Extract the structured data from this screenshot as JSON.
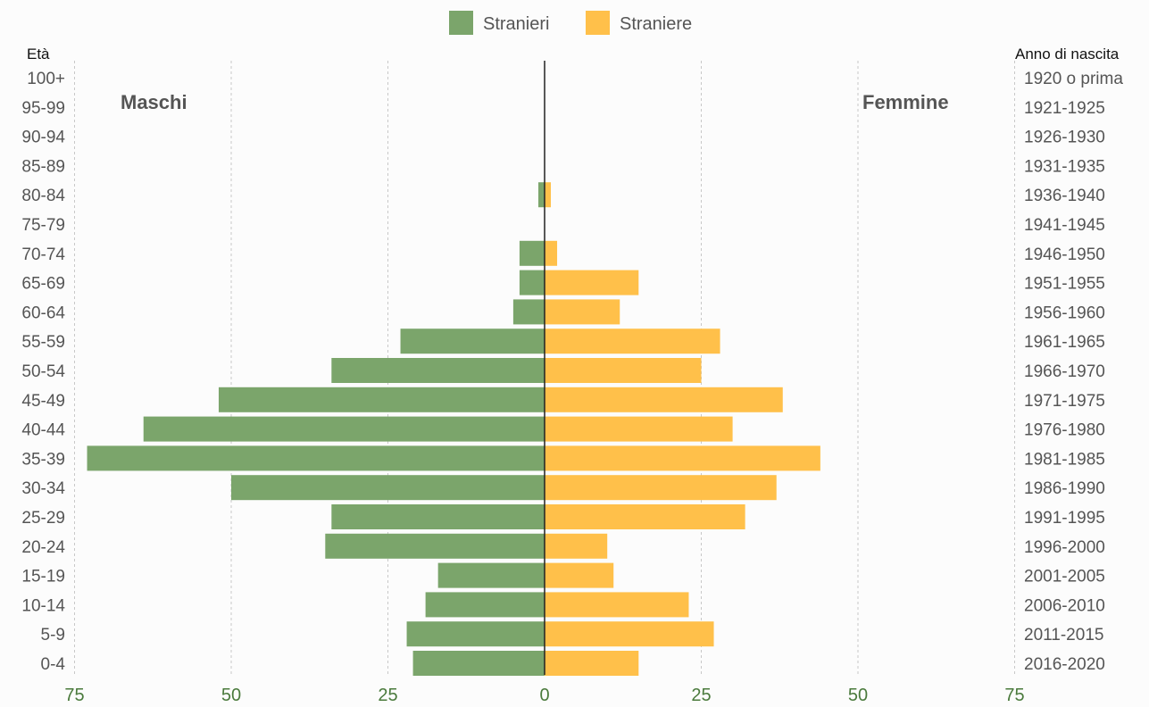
{
  "chart_data": {
    "type": "bar",
    "age_groups": [
      "0-4",
      "5-9",
      "10-14",
      "15-19",
      "20-24",
      "25-29",
      "30-34",
      "35-39",
      "40-44",
      "45-49",
      "50-54",
      "55-59",
      "60-64",
      "65-69",
      "70-74",
      "75-79",
      "80-84",
      "85-89",
      "90-94",
      "95-99",
      "100+"
    ],
    "birth_years": [
      "2016-2020",
      "2011-2015",
      "2006-2010",
      "2001-2005",
      "1996-2000",
      "1991-1995",
      "1986-1990",
      "1981-1985",
      "1976-1980",
      "1971-1975",
      "1966-1970",
      "1961-1965",
      "1956-1960",
      "1951-1955",
      "1946-1950",
      "1941-1945",
      "1936-1940",
      "1931-1935",
      "1926-1930",
      "1921-1925",
      "1920 o prima"
    ],
    "series": [
      {
        "name": "Stranieri",
        "color": "#7ba56b",
        "side": "left",
        "values": [
          21,
          22,
          19,
          17,
          35,
          34,
          50,
          73,
          64,
          52,
          34,
          23,
          5,
          4,
          4,
          0,
          1,
          0,
          0,
          0,
          0
        ]
      },
      {
        "name": "Straniere",
        "color": "#ffc04a",
        "side": "right",
        "values": [
          15,
          27,
          23,
          11,
          10,
          32,
          37,
          44,
          30,
          38,
          25,
          28,
          12,
          15,
          2,
          0,
          1,
          0,
          0,
          0,
          0
        ]
      }
    ],
    "x_ticks": [
      "75",
      "50",
      "25",
      "0",
      "25",
      "50",
      "75"
    ],
    "xlim": [
      -75,
      75
    ],
    "left_axis_title": "Età",
    "right_axis_title": "Anno di nascita",
    "left_side_label": "Maschi",
    "right_side_label": "Femmine",
    "legend_position": "top-center",
    "grid": true
  }
}
